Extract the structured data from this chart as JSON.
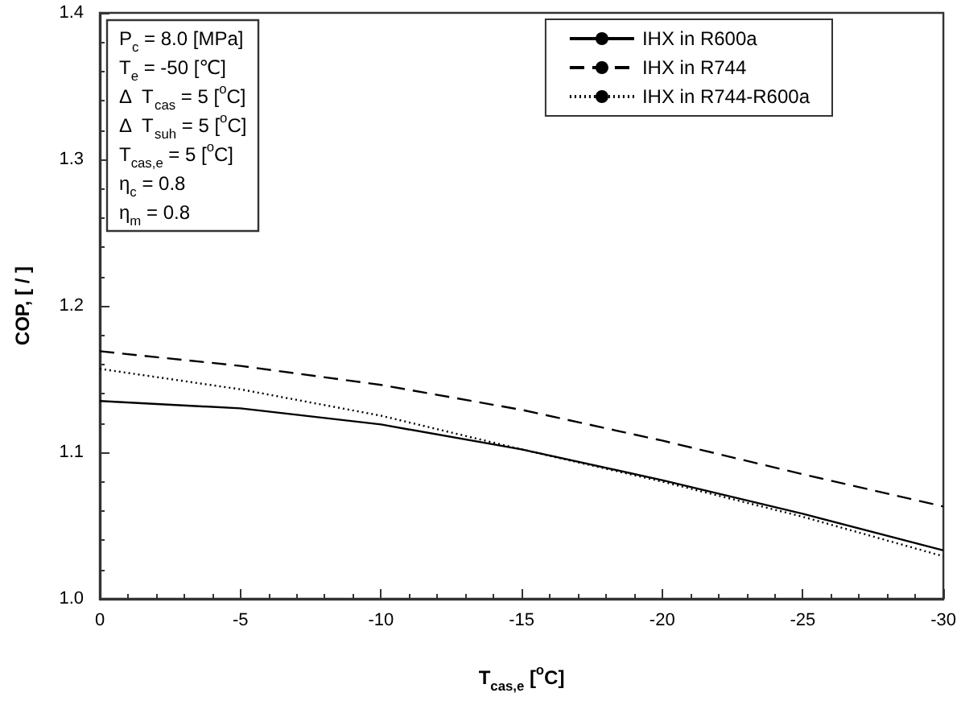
{
  "chart_data": {
    "type": "line",
    "xlabel": "T$_{cas,e}$ [$^{o}$C]",
    "ylabel": "COP, [ / ]",
    "x": [
      0,
      -5,
      -10,
      -15,
      -20,
      -25,
      -30
    ],
    "series": [
      {
        "name": "IHX in R600a",
        "color": "#000000",
        "line_style": "solid",
        "values": [
          1.135,
          1.13,
          1.119,
          1.102,
          1.081,
          1.058,
          1.033
        ]
      },
      {
        "name": "IHX in R744",
        "color": "#000000",
        "line_style": "dashed",
        "values": [
          1.169,
          1.159,
          1.146,
          1.129,
          1.108,
          1.085,
          1.063
        ]
      },
      {
        "name": "IHX in R744-R600a",
        "color": "#000000",
        "line_style": "dotted",
        "values": [
          1.157,
          1.143,
          1.125,
          1.102,
          1.08,
          1.056,
          1.029
        ]
      }
    ],
    "xlim": [
      0,
      -30
    ],
    "xticks": [
      0,
      -5,
      -10,
      -15,
      -20,
      -25,
      -30
    ],
    "ylim": [
      1.0,
      1.4
    ],
    "yticks": [
      {
        "value": 1.0,
        "label": "1.0"
      },
      {
        "value": 1.1,
        "label": "1.1"
      },
      {
        "value": 1.2,
        "label": "1.2"
      },
      {
        "value": 1.3,
        "label": "1.3"
      },
      {
        "value": 1.4,
        "label": "1.4"
      }
    ],
    "annotations": [
      "P$_{c}$ = 8.0 [MPa]",
      "T$_{e}$ = -50 [℃]",
      "Δ  T$_{cas}$ = 5 [$^{o}$C]",
      "Δ  T$_{suh}$ = 5 [$^{o}$C]",
      "T$_{cas,e}$ = 5 [$^{o}$C]",
      "η$_{c}$ = 0.8",
      "η$_{m}$ = 0.8"
    ],
    "grid": false,
    "legend": "top right",
    "marker": "none"
  }
}
